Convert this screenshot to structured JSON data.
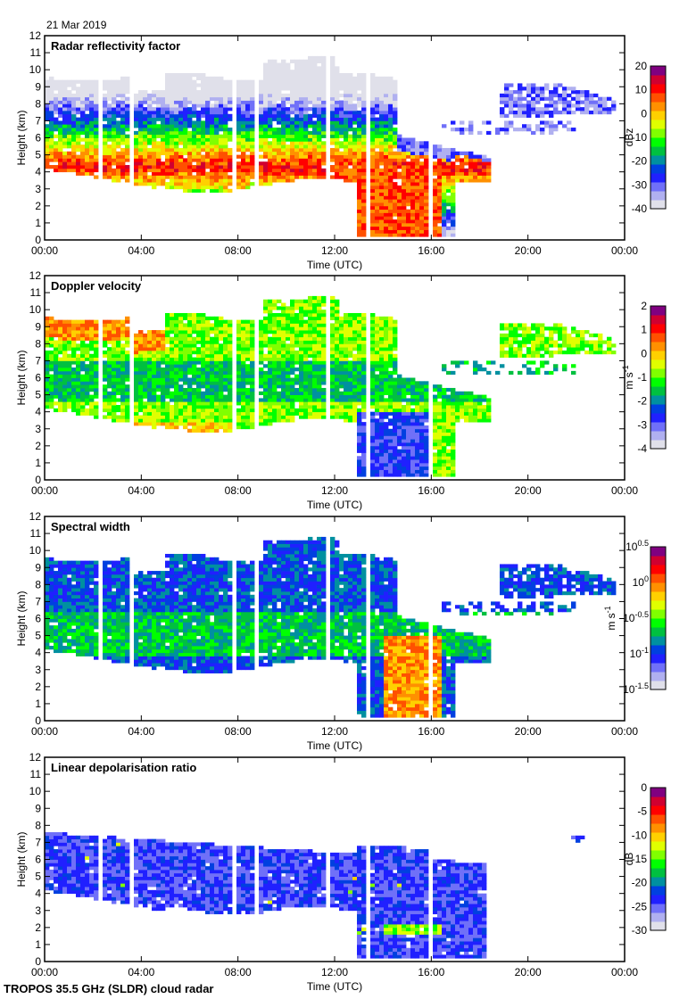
{
  "header": {
    "date": "21 Mar 2019"
  },
  "footer": {
    "instrument": "TROPOS 35.5 GHz (SLDR) cloud radar"
  },
  "chart_data": [
    {
      "type": "heatmap",
      "title": "Radar reflectivity factor",
      "xlabel": "Time (UTC)",
      "ylabel": "Height (km)",
      "x_ticks": [
        "00:00",
        "04:00",
        "08:00",
        "12:00",
        "16:00",
        "20:00",
        "00:00"
      ],
      "y_ticks": [
        "0",
        "1",
        "2",
        "3",
        "4",
        "5",
        "6",
        "7",
        "8",
        "9",
        "10",
        "11",
        "12"
      ],
      "ylim": [
        0,
        12
      ],
      "xlim_hours": [
        0,
        24
      ],
      "colorbar": {
        "label": "dBz",
        "range": [
          -40,
          20
        ],
        "ticks": [
          "20",
          "10",
          "0",
          "-10",
          "-20",
          "-30",
          "-40"
        ]
      }
    },
    {
      "type": "heatmap",
      "title": "Doppler velocity",
      "xlabel": "Time (UTC)",
      "ylabel": "Height (km)",
      "x_ticks": [
        "00:00",
        "04:00",
        "08:00",
        "12:00",
        "16:00",
        "20:00",
        "00:00"
      ],
      "y_ticks": [
        "0",
        "1",
        "2",
        "3",
        "4",
        "5",
        "6",
        "7",
        "8",
        "9",
        "10",
        "11",
        "12"
      ],
      "ylim": [
        0,
        12
      ],
      "xlim_hours": [
        0,
        24
      ],
      "colorbar": {
        "label": "m s",
        "label_sup": "-1",
        "range": [
          -4,
          2
        ],
        "ticks": [
          "2",
          "1",
          "0",
          "-1",
          "-2",
          "-3",
          "-4"
        ]
      }
    },
    {
      "type": "heatmap",
      "title": "Spectral width",
      "xlabel": "Time (UTC)",
      "ylabel": "Height (km)",
      "x_ticks": [
        "00:00",
        "04:00",
        "08:00",
        "12:00",
        "16:00",
        "20:00",
        "00:00"
      ],
      "y_ticks": [
        "0",
        "1",
        "2",
        "3",
        "4",
        "5",
        "6",
        "7",
        "8",
        "9",
        "10",
        "11",
        "12"
      ],
      "ylim": [
        0,
        12
      ],
      "xlim_hours": [
        0,
        24
      ],
      "colorbar": {
        "label": "m s",
        "label_sup": "-1",
        "range": [
          -1.5,
          0.5
        ],
        "scale": "log10",
        "ticks": [
          "10^0.5",
          "10^0",
          "10^-0.5",
          "10^-1",
          "10^-1.5"
        ],
        "tick_base": "10",
        "tick_exps": [
          "0.5",
          "0",
          "-0.5",
          "-1",
          "-1.5"
        ]
      }
    },
    {
      "type": "heatmap",
      "title": "Linear depolarisation ratio",
      "xlabel": "Time (UTC)",
      "ylabel": "Height (km)",
      "x_ticks": [
        "00:00",
        "04:00",
        "08:00",
        "12:00",
        "16:00",
        "20:00",
        "00:00"
      ],
      "y_ticks": [
        "0",
        "1",
        "2",
        "3",
        "4",
        "5",
        "6",
        "7",
        "8",
        "9",
        "10",
        "11",
        "12"
      ],
      "ylim": [
        0,
        12
      ],
      "xlim_hours": [
        0,
        24
      ],
      "colorbar": {
        "label": "dB",
        "range": [
          -30,
          0
        ],
        "ticks": [
          "0",
          "-5",
          "-10",
          "-15",
          "-20",
          "-25",
          "-30"
        ]
      }
    }
  ],
  "colormap": [
    "#e0e0ea",
    "#b0b0f0",
    "#7070f8",
    "#2020ff",
    "#0040e0",
    "#0090a0",
    "#00c040",
    "#00ff00",
    "#80ff00",
    "#e0ff00",
    "#ffd000",
    "#ff9000",
    "#ff5000",
    "#ff0000",
    "#d00030",
    "#800080"
  ]
}
